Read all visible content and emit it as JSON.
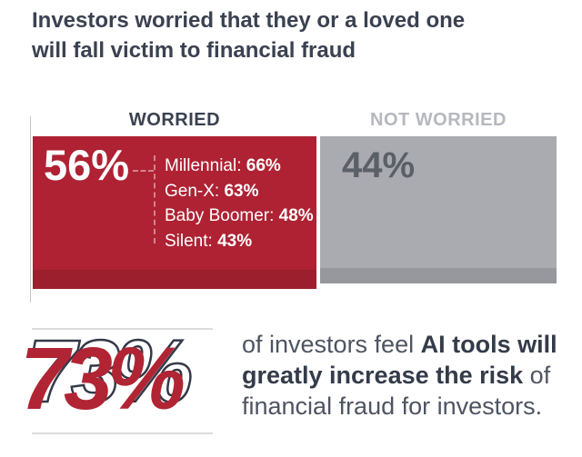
{
  "title": {
    "line1": "Investors worried that they or a loved one",
    "line2": "will fall victim to financial fraud"
  },
  "chart_data": {
    "type": "bar",
    "orientation": "horizontal-stacked",
    "title": "Investors worried that they or a loved one will fall victim to financial fraud",
    "categories": [
      "Worried",
      "Not worried"
    ],
    "values": [
      56,
      44
    ],
    "unit": "%",
    "xlim": [
      0,
      100
    ],
    "grid": false,
    "legend_position": "labels-above-segments",
    "breakdown_of_worried": [
      {
        "label": "Millennial",
        "value": 66
      },
      {
        "label": "Gen-X",
        "value": 63
      },
      {
        "label": "Baby Boomer",
        "value": 48
      },
      {
        "label": "Silent",
        "value": 43
      }
    ],
    "secondary_stat": {
      "value": 73,
      "unit": "%",
      "text": "of investors feel AI tools will greatly increase the risk of financial fraud for investors."
    }
  },
  "bars": {
    "worried": {
      "label": "WORRIED",
      "value": "56%",
      "breakdown": [
        {
          "label": "Millennial: ",
          "value": "66%"
        },
        {
          "label": "Gen-X: ",
          "value": "63%"
        },
        {
          "label": "Baby Boomer: ",
          "value": "48%"
        },
        {
          "label": "Silent: ",
          "value": "43%"
        }
      ]
    },
    "not_worried": {
      "label": "NOT WORRIED",
      "value": "44%"
    }
  },
  "stat": {
    "value": "73%",
    "parts": [
      {
        "text": "of investors feel "
      },
      {
        "text": "AI tools will greatly increase the risk"
      },
      {
        "text": " of financial fraud for investors."
      }
    ]
  },
  "colors": {
    "title_navy": "#3A4150",
    "worried_red": "#AE2233",
    "worried_red_strip": "#9B1F2D",
    "not_worried_gray": "#A9ABB0",
    "not_worried_gray_strip": "#96989D",
    "not_worried_label": "#B5B8BD",
    "pct_gray_text": "#5B5F66",
    "stat_red": "#B12433",
    "stat_outline": "#333947",
    "rule_gray": "#DADBDD",
    "body_text": "#4E5461"
  }
}
